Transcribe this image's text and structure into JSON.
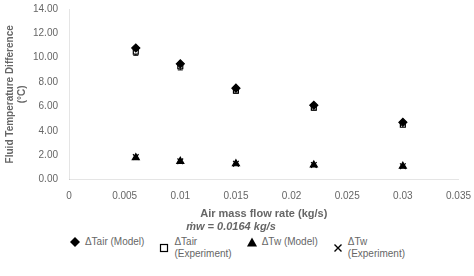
{
  "chart_data": {
    "type": "scatter",
    "xlabel": "Air mass flow rate (kg/s)",
    "subtitle": "ṁw = 0.0164 kg/s",
    "ylabel": "Fluid Temperature Difference\n(°C)",
    "x": [
      0.006,
      0.01,
      0.015,
      0.022,
      0.03
    ],
    "series": [
      {
        "name": "ΔTair (Model)",
        "color": "#000000",
        "marker": "diamond",
        "values": [
          10.8,
          9.5,
          7.5,
          6.1,
          4.7
        ]
      },
      {
        "name": "ΔTair\n(Experiment)",
        "color": "#000000",
        "marker": "square_open",
        "values": [
          10.5,
          9.3,
          7.3,
          5.9,
          4.5
        ],
        "errors": [
          0.3,
          0.3,
          0.2,
          0.2,
          0.15
        ]
      },
      {
        "name": "ΔTw (Model)",
        "color": "#000000",
        "marker": "triangle",
        "values": [
          1.8,
          1.5,
          1.3,
          1.2,
          1.1
        ]
      },
      {
        "name": "ΔTw\n(Experiment)",
        "color": "#000000",
        "marker": "x",
        "values": [
          1.85,
          1.5,
          1.3,
          1.2,
          1.1
        ]
      }
    ],
    "xlim": [
      0,
      0.035
    ],
    "xticks": [
      0,
      0.005,
      0.01,
      0.015,
      0.02,
      0.025,
      0.03,
      0.035
    ],
    "ylim": [
      0.0,
      14.0
    ],
    "yticks": [
      {
        "value": 0,
        "label": "0.00"
      },
      {
        "value": 2,
        "label": "2.00"
      },
      {
        "value": 4,
        "label": "4.00"
      },
      {
        "value": 6,
        "label": "6.00"
      },
      {
        "value": 8,
        "label": "8.00"
      },
      {
        "value": 10,
        "label": "10.00"
      },
      {
        "value": 12,
        "label": "12.00"
      },
      {
        "value": 14,
        "label": "14.00"
      }
    ],
    "grid": false,
    "legend": "bottom"
  }
}
